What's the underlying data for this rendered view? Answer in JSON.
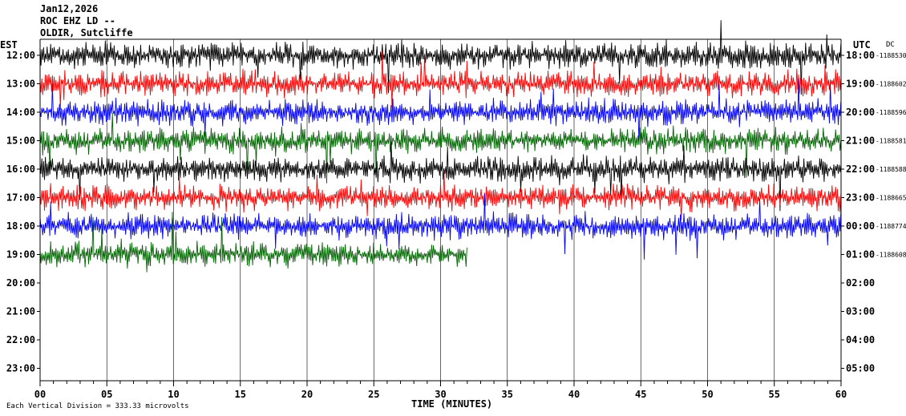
{
  "header": {
    "date": "Jan12,2026",
    "station": "ROC EHZ LD --",
    "site": "OLDIR, Sutcliffe"
  },
  "labels": {
    "left_tz": "EST",
    "right_tz": "UTC",
    "dc_label": "DC",
    "x_axis_title": "TIME (MINUTES)",
    "footer": "Each Vertical Division = 333.33 microvolts"
  },
  "colors": {
    "trace_cycle": [
      "#000000",
      "#ff0000",
      "#0000ff",
      "#006400"
    ],
    "grid": "#000000"
  },
  "chart_data": {
    "type": "line",
    "description_type": "helicorder",
    "x": {
      "min": 0,
      "max": 60,
      "ticks": [
        "00",
        "05",
        "10",
        "15",
        "20",
        "25",
        "30",
        "35",
        "40",
        "45",
        "50",
        "55",
        "60"
      ]
    },
    "rows": [
      {
        "est": "12:00",
        "utc": "18:00",
        "dc": "-1188530",
        "color": "#000000",
        "filled_minutes": 60
      },
      {
        "est": "13:00",
        "utc": "19:00",
        "dc": "-1188602",
        "color": "#ff0000",
        "filled_minutes": 60
      },
      {
        "est": "14:00",
        "utc": "20:00",
        "dc": "-1188596",
        "color": "#0000ff",
        "filled_minutes": 60
      },
      {
        "est": "15:00",
        "utc": "21:00",
        "dc": "-1188581",
        "color": "#006400",
        "filled_minutes": 60
      },
      {
        "est": "16:00",
        "utc": "22:00",
        "dc": "-1188588",
        "color": "#000000",
        "filled_minutes": 60
      },
      {
        "est": "17:00",
        "utc": "23:00",
        "dc": "-1188665",
        "color": "#ff0000",
        "filled_minutes": 60
      },
      {
        "est": "18:00",
        "utc": "00:00",
        "dc": "-1188774",
        "color": "#0000ff",
        "filled_minutes": 60
      },
      {
        "est": "19:00",
        "utc": "01:00",
        "dc": "-1188608",
        "color": "#006400",
        "filled_minutes": 32
      },
      {
        "est": "20:00",
        "utc": "02:00",
        "dc": "",
        "color": "#000000",
        "filled_minutes": 0
      },
      {
        "est": "21:00",
        "utc": "03:00",
        "dc": "",
        "color": "#ff0000",
        "filled_minutes": 0
      },
      {
        "est": "22:00",
        "utc": "04:00",
        "dc": "",
        "color": "#0000ff",
        "filled_minutes": 0
      },
      {
        "est": "23:00",
        "utc": "05:00",
        "dc": "",
        "color": "#006400",
        "filled_minutes": 0
      }
    ]
  }
}
